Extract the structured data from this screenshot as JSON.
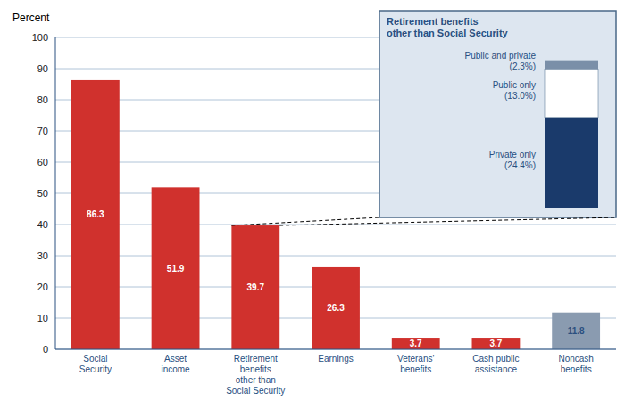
{
  "chart_data": [
    {
      "type": "bar",
      "categories": [
        "Social\nSecurity",
        "Asset\nincome",
        "Retirement\nbenefits\nother than\nSocial Security",
        "Earnings",
        "Veterans'\nbenefits",
        "Cash public\nassistance",
        "Noncash\nbenefits"
      ],
      "values": [
        86.3,
        51.9,
        39.7,
        26.3,
        3.7,
        3.7,
        11.8
      ],
      "colors": [
        "#d0312d",
        "#d0312d",
        "#d0312d",
        "#d0312d",
        "#d0312d",
        "#d0312d",
        "#8a9bb0"
      ],
      "y_label": "Percent",
      "ylim": [
        0,
        100
      ],
      "yticks": [
        0,
        10,
        20,
        30,
        40,
        50,
        60,
        70,
        80,
        90,
        100
      ],
      "grid": true,
      "data_labels": true
    },
    {
      "type": "bar",
      "title": "Retirement benefits\nother than Social Security",
      "stacked": true,
      "categories": [
        null
      ],
      "series": [
        {
          "name": "Private only\n(24.4%)",
          "color": "#1a3a6b",
          "values": [
            24.4
          ]
        },
        {
          "name": "Public only\n(13.0%)",
          "color": "#ffffff",
          "values": [
            13.0
          ]
        },
        {
          "name": "Public and private\n(2.3%)",
          "color": "#7a8fa8",
          "values": [
            2.3
          ]
        }
      ],
      "ylim": [
        0,
        42
      ],
      "tick_labels": false
    }
  ]
}
